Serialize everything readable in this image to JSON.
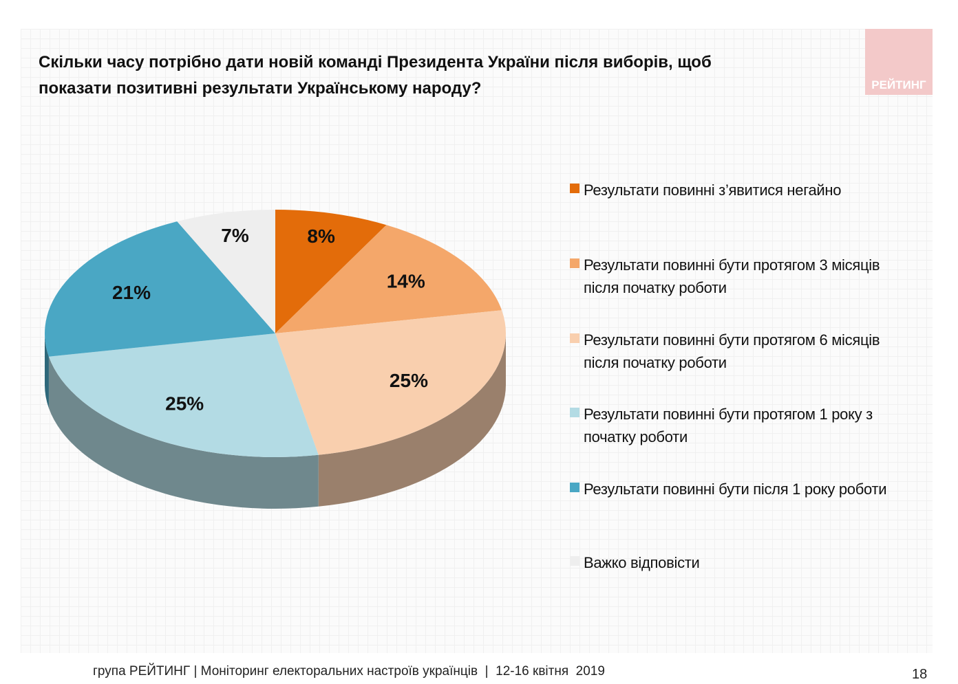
{
  "chart_data": {
    "type": "pie",
    "title": "Скільки часу потрібно дати новій команді Президента України після виборів, щоб показати позитивні результати Українському народу?",
    "categories": [
      "Результати повинні з’явитися негайно",
      "Результати повинні бути протягом 3 місяців після початку роботи",
      "Результати повинні бути протягом 6 місяців після початку роботи",
      "Результати повинні бути протягом 1 року з початку роботи",
      "Результати повинні бути після 1 року роботи",
      "Важко відповісти"
    ],
    "values": [
      8,
      14,
      25,
      25,
      21,
      7
    ],
    "value_labels": [
      "8%",
      "14%",
      "25%",
      "25%",
      "21%",
      "7%"
    ],
    "colors": [
      "#e36c0a",
      "#f4a76a",
      "#f9cfae",
      "#b3dbe4",
      "#4aa7c4",
      "#eeeeee"
    ],
    "legend": "right"
  },
  "logo": "РЕЙТИНГ",
  "footer": "група РЕЙТИНГ | Моніторинг електоральних настроїв українців  |  12-16 квітня  2019",
  "page_number": "18"
}
